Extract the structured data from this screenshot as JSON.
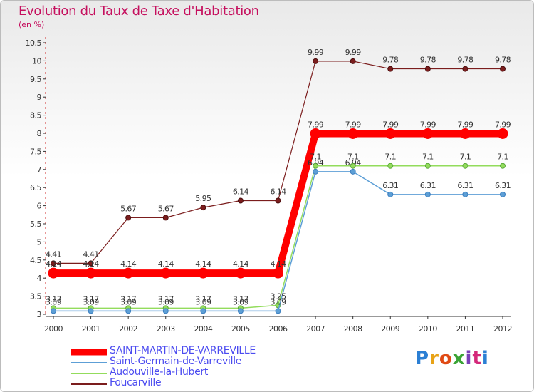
{
  "header": {
    "title": "Evolution du Taux de Taxe d'Habitation",
    "unit": "(en %)"
  },
  "logo": {
    "text": "Proxiti",
    "letter_colors": [
      "#2b7fd4",
      "#e8a317",
      "#e04a14",
      "#3aa335",
      "#7a3fb8",
      "#d4287a",
      "#2b7fd4"
    ]
  },
  "chart_data": {
    "type": "line",
    "x": [
      2000,
      2001,
      2002,
      2003,
      2004,
      2005,
      2006,
      2007,
      2008,
      2009,
      2010,
      2011,
      2012
    ],
    "ylim": [
      3,
      10.5
    ],
    "yticks": [
      "3",
      "3.5",
      "4",
      "4.5",
      "5",
      "5.5",
      "6",
      "6.5",
      "7",
      "7.5",
      "8",
      "8.5",
      "9",
      "9.5",
      "10",
      "10.5"
    ],
    "grid": false,
    "legend": "bottom",
    "series": [
      {
        "name": "SAINT-MARTIN-DE-VARREVILLE",
        "color": "#ff0000",
        "values": [
          4.14,
          4.14,
          4.14,
          4.14,
          4.14,
          4.14,
          4.14,
          7.99,
          7.99,
          7.99,
          7.99,
          7.99,
          7.99
        ],
        "labels": [
          "4.14",
          "4.14",
          "4.14",
          "4.14",
          "4.14",
          "4.14",
          "4.14",
          "7.99",
          "7.99",
          "7.99",
          "7.99",
          "7.99",
          "7.99"
        ]
      },
      {
        "name": "Saint-Germain-de-Varreville",
        "color": "#5d9fd6",
        "values": [
          3.09,
          3.09,
          3.09,
          3.09,
          3.09,
          3.09,
          3.09,
          6.94,
          6.94,
          6.31,
          6.31,
          6.31,
          6.31
        ],
        "labels": [
          "3.09",
          "3.09",
          "3.09",
          "3.09",
          "3.09",
          "3.09",
          "3.09",
          "6.94",
          "6.94",
          "6.31",
          "6.31",
          "6.31",
          "6.31"
        ]
      },
      {
        "name": "Audouville-la-Hubert",
        "color": "#93dc5c",
        "values": [
          3.17,
          3.17,
          3.17,
          3.17,
          3.17,
          3.17,
          3.25,
          7.1,
          7.1,
          7.1,
          7.1,
          7.1,
          7.1
        ],
        "labels": [
          "3.17",
          "3.17",
          "3.17",
          "3.17",
          "3.17",
          "3.17",
          "3.25",
          "7.1",
          "7.1",
          "7.1",
          "7.1",
          "7.1",
          "7.1"
        ]
      },
      {
        "name": "Foucarville",
        "color": "#7b1d1d",
        "values": [
          4.41,
          4.41,
          5.67,
          5.67,
          5.95,
          6.14,
          6.14,
          9.99,
          9.99,
          9.78,
          9.78,
          9.78,
          9.78
        ],
        "labels": [
          "4.41",
          "4.41",
          "5.67",
          "5.67",
          "5.95",
          "6.14",
          "6.14",
          "9.99",
          "9.99",
          "9.78",
          "9.78",
          "9.78",
          "9.78"
        ]
      }
    ]
  }
}
